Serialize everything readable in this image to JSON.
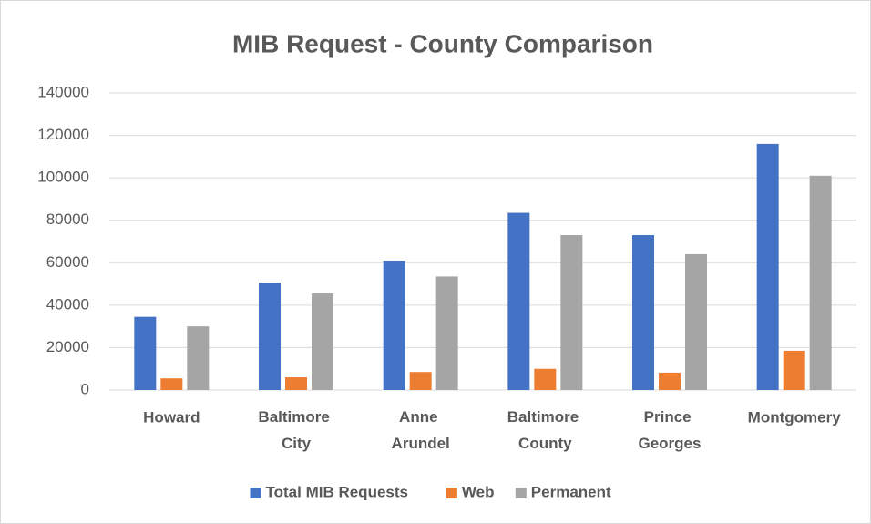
{
  "chart_data": {
    "type": "bar",
    "title": "MIB Request - County Comparison",
    "categories": [
      "Howard",
      "Baltimore City",
      "Anne Arundel",
      "Baltimore County",
      "Prince Georges",
      "Montgomery"
    ],
    "series": [
      {
        "name": "Total MIB Requests",
        "color": "#4472c4",
        "values": [
          34500,
          50500,
          61000,
          83500,
          73000,
          116000
        ]
      },
      {
        "name": "Web",
        "color": "#ed7d31",
        "values": [
          5500,
          6000,
          8500,
          10000,
          8200,
          18500
        ]
      },
      {
        "name": "Permanent",
        "color": "#a5a5a5",
        "values": [
          30000,
          45500,
          53500,
          73000,
          64000,
          101000
        ]
      }
    ],
    "ylim": [
      0,
      140000
    ],
    "yticks": [
      0,
      20000,
      40000,
      60000,
      80000,
      100000,
      120000,
      140000
    ],
    "grid": true,
    "legend": "bottom"
  }
}
